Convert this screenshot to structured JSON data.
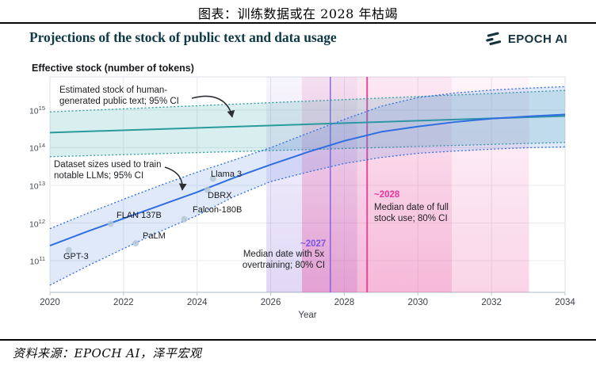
{
  "page": {
    "header_title": "图表：训练数据或在 2028 年枯竭",
    "source_note": "资料来源：EPOCH AI，泽平宏观"
  },
  "chart": {
    "title": "Projections of the stock of public text and data usage",
    "brand": "EPOCH AI"
  },
  "annotations": {
    "human_text_note": {
      "line1": "Estimated stock of human-",
      "line2": "generated public text; 95% CI"
    },
    "datasets_note": {
      "line1": "Dataset sizes used to train",
      "line2": "notable LLMs; 95% CI"
    },
    "overtraining_note": {
      "tag": "~2027",
      "line1": "Median date with 5x",
      "line2": "overtraining; 80% CI"
    },
    "full_stock_note": {
      "tag": "~2028",
      "line1": "Median date of full",
      "line2": "stock use; 80% CI"
    }
  },
  "chart_data": {
    "type": "line",
    "title": "Projections of the stock of public text and data usage",
    "xlabel": "Year",
    "ylabel": "Effective stock (number of tokens)",
    "xlim": [
      2020,
      2034
    ],
    "ylim_log10": [
      10.16,
      15.88
    ],
    "x_ticks": [
      2020,
      2022,
      2024,
      2026,
      2028,
      2030,
      2032,
      2034
    ],
    "y_tick_exponents": [
      11,
      12,
      13,
      14,
      15
    ],
    "grid": true,
    "legend": "none (direct annotations)",
    "dot_color": "#b3c4d6",
    "bands": [
      {
        "name": "human-generated-public-text-stock",
        "label": "Estimated stock of human-generated public text; 95% CI",
        "line_color": "#2a9b9b",
        "fill": "rgba(64,170,170,0.20)",
        "x": [
          2020,
          2034
        ],
        "center_log10": [
          14.4,
          14.84
        ],
        "upper_log10": [
          14.95,
          15.52
        ],
        "lower_log10": [
          13.76,
          14.14
        ]
      },
      {
        "name": "dataset-sizes-notable-llms",
        "label": "Dataset sizes used to train notable LLMs; 95% CI",
        "line_color": "#2e6ee2",
        "fill": "rgba(72,122,228,0.17)",
        "x": [
          2020,
          2021,
          2022,
          2023,
          2024,
          2025,
          2026,
          2027,
          2028,
          2029,
          2030,
          2031,
          2032,
          2033,
          2034
        ],
        "center_log10": [
          11.4,
          11.77,
          12.12,
          12.47,
          12.82,
          13.2,
          13.55,
          13.88,
          14.18,
          14.42,
          14.56,
          14.68,
          14.77,
          14.83,
          14.88
        ],
        "upper_log10": [
          11.85,
          12.25,
          12.63,
          13.0,
          13.35,
          13.67,
          14.0,
          14.38,
          14.75,
          15.1,
          15.33,
          15.45,
          15.53,
          15.58,
          15.62
        ],
        "lower_log10": [
          10.35,
          10.85,
          11.32,
          11.78,
          12.2,
          12.7,
          13.1,
          13.35,
          13.58,
          13.74,
          13.85,
          13.91,
          13.96,
          14.0,
          14.02
        ]
      }
    ],
    "models": [
      {
        "name": "GPT-3",
        "year": 2020.51,
        "log10_tokens": 11.28
      },
      {
        "name": "FLAN 137B",
        "year": 2021.65,
        "log10_tokens": 11.98
      },
      {
        "name": "PaLM",
        "year": 2022.33,
        "log10_tokens": 11.46
      },
      {
        "name": "Falcon-180B",
        "year": 2023.65,
        "log10_tokens": 12.1
      },
      {
        "name": "DBRX",
        "year": 2024.28,
        "log10_tokens": 12.88
      },
      {
        "name": "Llama 3",
        "year": 2024.43,
        "log10_tokens": 13.18
      }
    ],
    "regions": [
      {
        "name": "overtraining-80ci",
        "from": 2025.88,
        "to": 2028.35,
        "color": "#8a6ade",
        "opacity_top": 0.07,
        "opacity_bottom": 0.26
      },
      {
        "name": "full-stock-80ci-core",
        "from": 2026.85,
        "to": 2030.92,
        "color": "#e84f9f",
        "opacity_top": 0.13,
        "opacity_bottom": 0.4
      },
      {
        "name": "full-stock-80ci-tail",
        "from": 2030.92,
        "to": 2033.02,
        "color": "#e84f9f",
        "opacity_top": 0.06,
        "opacity_bottom": 0.24
      }
    ],
    "medians": [
      {
        "name": "median-5x-overtraining",
        "year": 2027.62,
        "label": "~2027",
        "color": "#7d5be0",
        "width": 1.5
      },
      {
        "name": "median-full-stock-use",
        "year": 2028.62,
        "label": "~2028",
        "color": "#e13a98",
        "width": 2
      }
    ]
  }
}
